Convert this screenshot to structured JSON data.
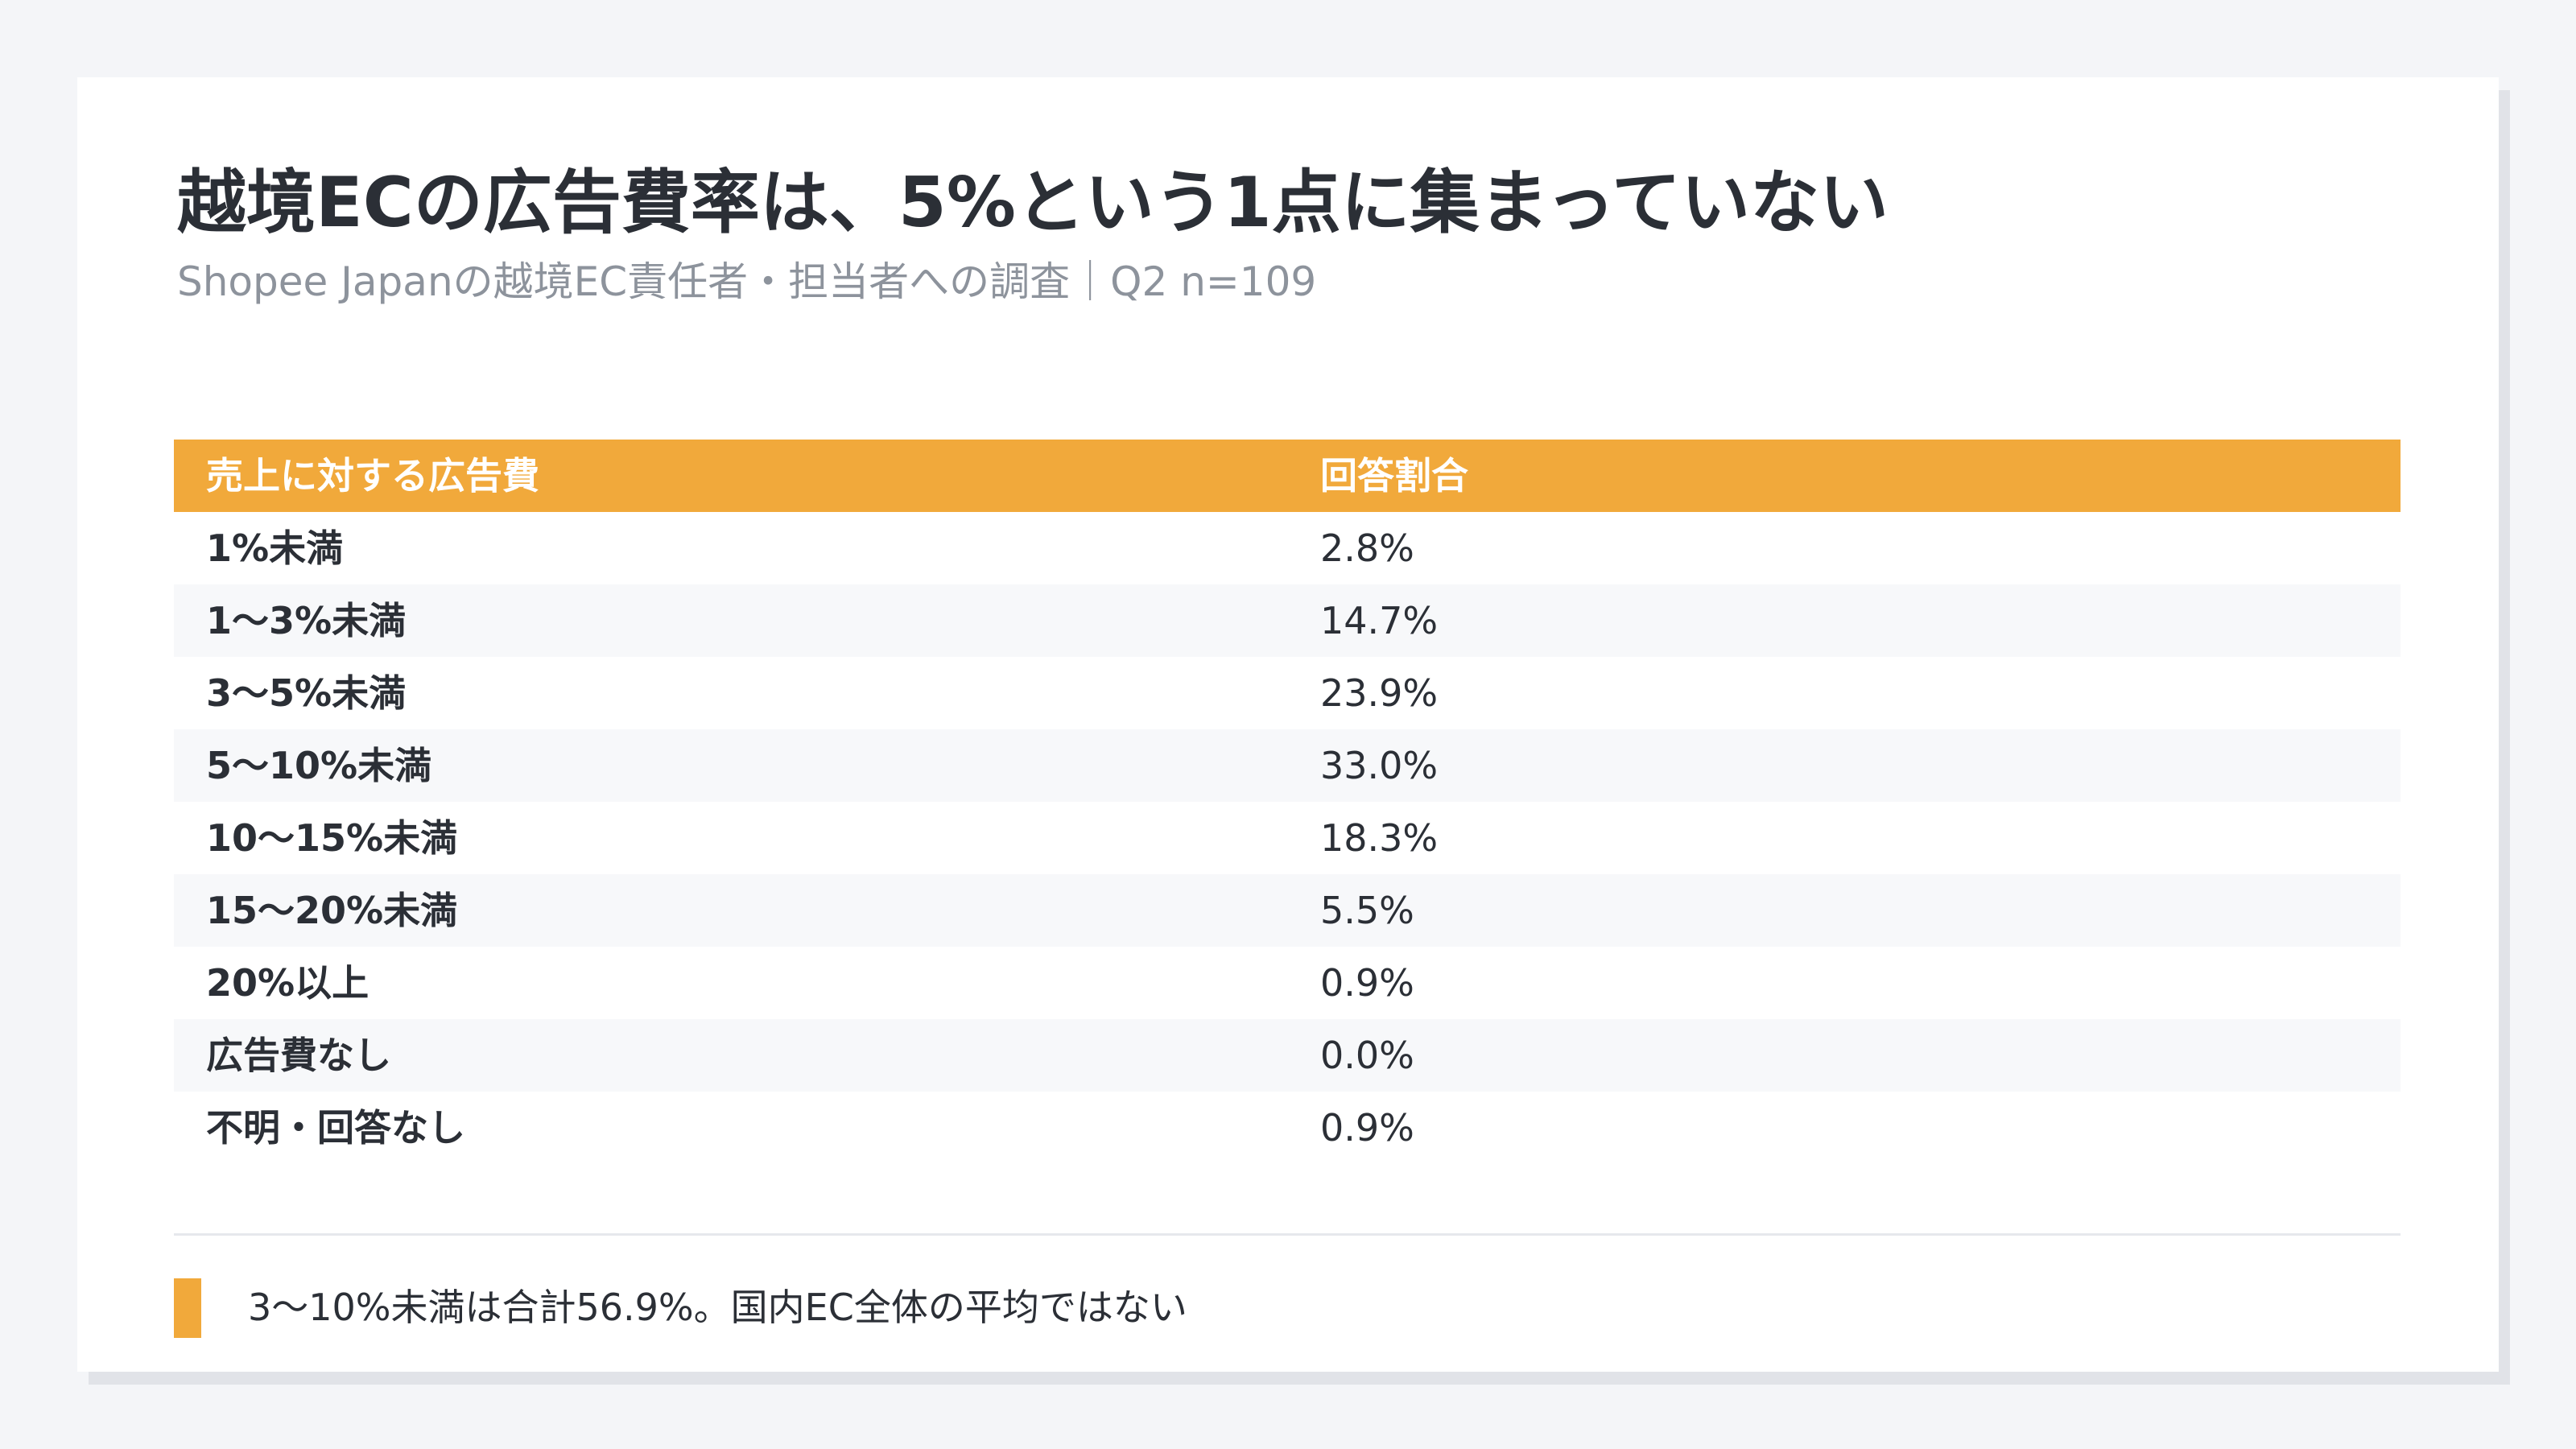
{
  "title": "越境ECの広告費率は、5%という1点に集まっていない",
  "subtitle": "Shopee Japanの越境EC責任者・担当者への調査｜Q2 n=109",
  "table": {
    "headers": [
      "売上に対する広告費",
      "回答割合"
    ],
    "rows": [
      {
        "label": "1%未満",
        "value": "2.8%"
      },
      {
        "label": "1〜3%未満",
        "value": "14.7%"
      },
      {
        "label": "3〜5%未満",
        "value": "23.9%"
      },
      {
        "label": "5〜10%未満",
        "value": "33.0%"
      },
      {
        "label": "10〜15%未満",
        "value": "18.3%"
      },
      {
        "label": "15〜20%未満",
        "value": "5.5%"
      },
      {
        "label": "20%以上",
        "value": "0.9%"
      },
      {
        "label": "広告費なし",
        "value": "0.0%"
      },
      {
        "label": "不明・回答なし",
        "value": "0.9%"
      }
    ]
  },
  "note": "3〜10%未満は合計56.9%。国内EC全体の平均ではない",
  "colors": {
    "accent": "#f1a93b",
    "background": "#f4f5f8",
    "card": "#ffffff",
    "row_alt": "#f7f8fa",
    "text": "#2b2f36",
    "muted": "#8d939c"
  }
}
